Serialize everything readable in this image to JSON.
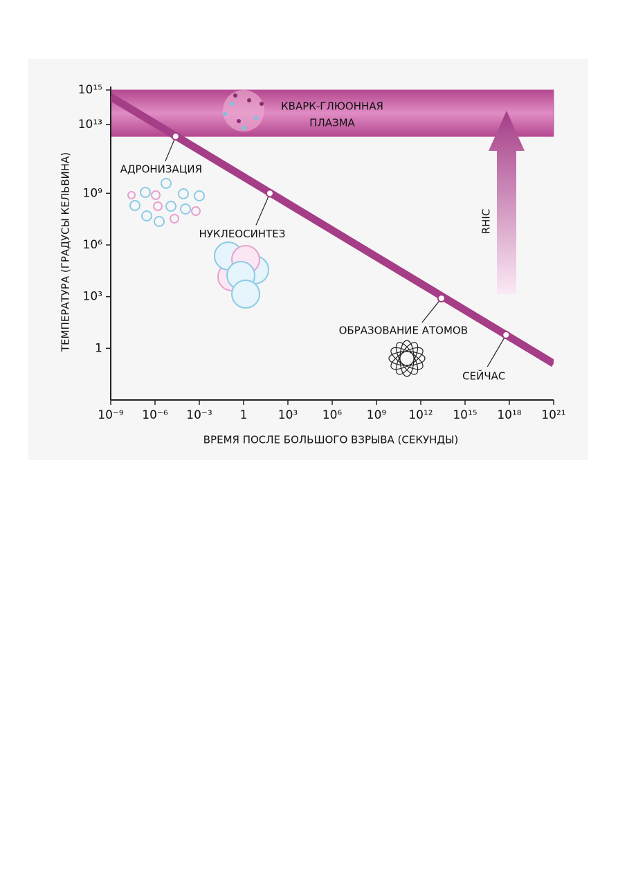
{
  "chart_data": {
    "type": "line",
    "xlabel": "ВРЕМЯ ПОСЛЕ БОЛЬШОГО ВЗРЫВА (СЕКУНДЫ)",
    "ylabel": "ТЕМПЕРАТУРА (ГРАДУСЫ КЕЛЬВИНА)",
    "log_x": true,
    "log_y": true,
    "xlim": [
      1e-09,
      1e+21
    ],
    "ylim": [
      0.001,
      1000000000000000.0
    ],
    "xticks": [
      {
        "value": 1e-09,
        "label": "10⁻⁹"
      },
      {
        "value": 1e-06,
        "label": "10⁻⁶"
      },
      {
        "value": 0.001,
        "label": "10⁻³"
      },
      1,
      {
        "value": 1000,
        "label": "10³"
      },
      {
        "value": 1000000.0,
        "label": "10⁶"
      },
      {
        "value": 1000000000.0,
        "label": "10⁹"
      },
      {
        "value": 1000000000000.0,
        "label": "10¹²"
      },
      {
        "value": 1000000000000000.0,
        "label": "10¹⁵"
      },
      {
        "value": 1e+18,
        "label": "10¹⁸"
      },
      {
        "value": 1e+21,
        "label": "10²¹"
      }
    ],
    "yticks": [
      1,
      {
        "value": 1000,
        "label": "10³"
      },
      {
        "value": 1000000.0,
        "label": "10⁶"
      },
      {
        "value": 1000000000.0,
        "label": "10⁹"
      },
      {
        "value": 10000000000000.0,
        "label": "10¹³"
      },
      {
        "value": 1000000000000000.0,
        "label": "10¹⁵"
      }
    ],
    "series": [
      {
        "color": "#a53d87",
        "x": [
          1e-09,
          1e+21
        ],
        "values": [
          400000000000000.0,
          0.13
        ]
      }
    ],
    "band": {
      "lines": [
        "КВАРК-ГЛЮОННАЯ",
        "ПЛАЗМА"
      ],
      "ylim": [
        2000000000000.0,
        1000000000000000.0
      ],
      "color": "#c4559f"
    },
    "arrow_label": "RHIC",
    "points": [
      {
        "label": "АДРОНИЗАЦИЯ",
        "x": 2.5e-05,
        "y": 2000000000000.0
      },
      {
        "label": "НУКЛЕОСИНТЕЗ",
        "x": 60,
        "y": 1000000000.0
      },
      {
        "label": "ОБРАЗОВАНИЕ АТОМОВ",
        "x": 25000000000000.0,
        "y": 800
      },
      {
        "label": "СЕЙЧАС",
        "x": 6e+17,
        "y": 6
      }
    ]
  }
}
